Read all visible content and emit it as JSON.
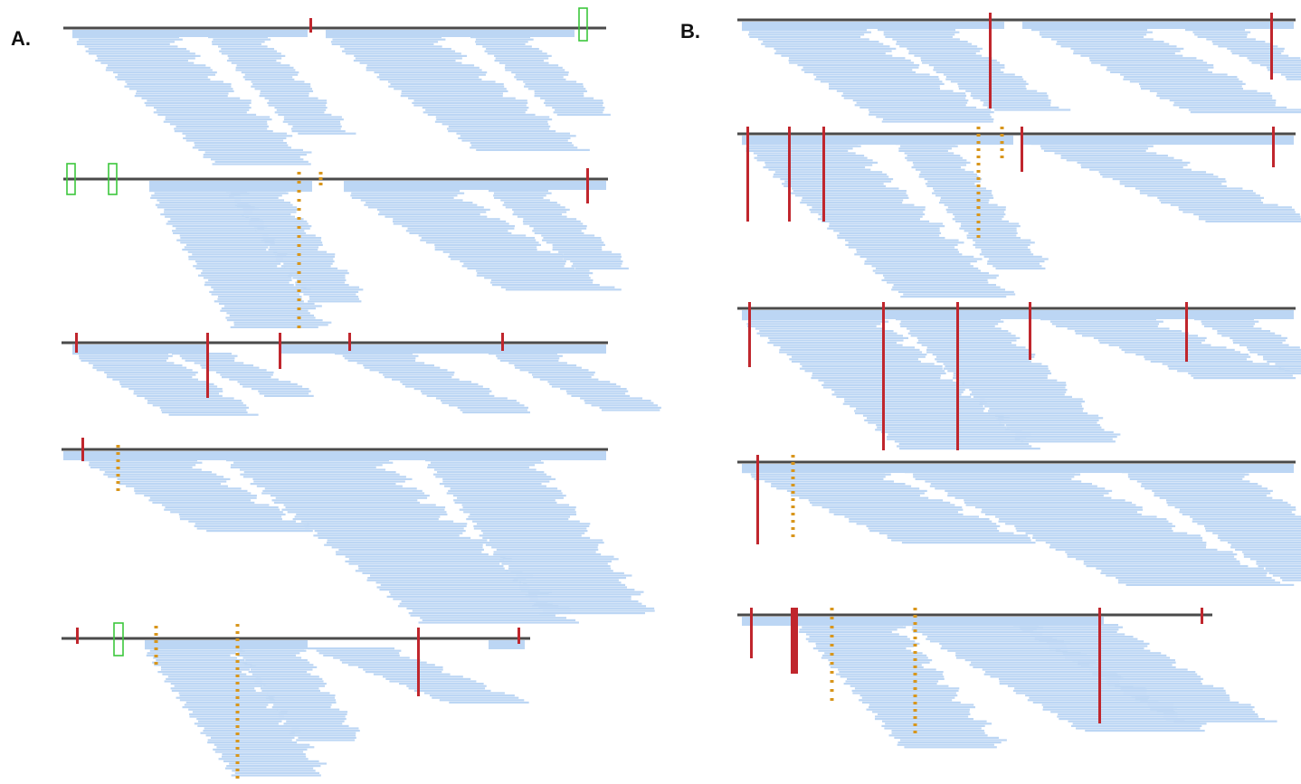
{
  "panels": [
    {
      "label": "A."
    },
    {
      "label": "B."
    }
  ],
  "colors": {
    "read": "#bcd6f4",
    "reference": "#4a4a4a",
    "mismatch": "#c0262d",
    "insertion": "#d8961c",
    "highlight_box": "#3cc73c"
  }
}
